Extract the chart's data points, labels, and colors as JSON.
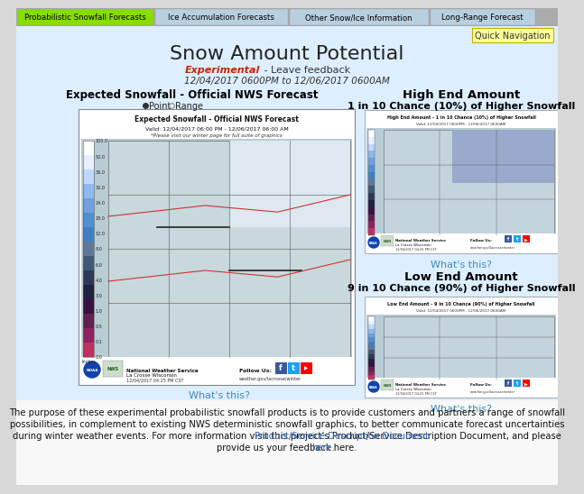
{
  "page_bg": "#d8d8d8",
  "content_bg": "#ddeeff",
  "nav_bg": "#aaaaaa",
  "nav_items": [
    "Probabilistic Snowfall Forecasts",
    "Ice Accumulation Forecasts",
    "Other Snow/Ice Information",
    "Long-Range Forecast"
  ],
  "nav_active_color": "#88dd00",
  "nav_inactive_color": "#b8cfe0",
  "nav_active_text": "#000000",
  "nav_inactive_text": "#000000",
  "nav_border_color": "#999999",
  "quick_nav_color": "#ffff99",
  "quick_nav_border": "#ccaa00",
  "quick_nav_text": "Quick Navigation",
  "title": "Snow Amount Potential",
  "title_color": "#222222",
  "title_fontsize": 16,
  "exp_text": "Experimental",
  "exp_color": "#cc2200",
  "feedback_text": " - Leave feedback",
  "feedback_color": "#333333",
  "date_text": "12/04/2017 0600PM to 12/06/2017 0600AM",
  "date_color": "#333333",
  "left_title": "Expected Snowfall - Official NWS Forecast",
  "left_title_color": "#000000",
  "radio_point": "Point",
  "radio_range": "Range",
  "map_bg": "#ccd8e4",
  "map_border": "#888888",
  "map_inner_bg": "#b8ccd8",
  "map_title": "Expected Snowfall - Official NWS Forecast",
  "map_valid": "Valid: 12/04/2017 06:00 PM - 12/06/2017 06:00 AM",
  "map_note": "*Please visit our winter page for full suite of graphics",
  "nws_line1": "National Weather Service",
  "nws_line2": "La Crosse Wisconsin",
  "follow_us": "Follow Us:",
  "date_stamp": "12/04/2017 04:25 PM CST",
  "web_url": "weather.gov/lacrosse/winter",
  "whats_this": "What's this?",
  "whats_this_color": "#4488bb",
  "high_end_title": "High End Amount",
  "high_end_sub": "1 in 10 Chance (10%) of Higher Snowfall",
  "high_end_map_title": "High End Amount - 1 in 10 Chance (10%) of Higher Snowfall",
  "high_end_valid": "Valid: 12/04/2017 0600PM - 12/06/2017 0600AM",
  "low_end_title": "Low End Amount",
  "low_end_sub": "9 in 10 Chance (90%) of Higher Snowfall",
  "low_end_map_title": "Low End Amount - 9 in 10 Chance (90%) of Higher Snowfall",
  "low_end_valid": "Valid: 12/04/2017 0600PM - 12/06/2017 0600AM",
  "bottom_bg": "#f0f4f8",
  "bottom_line1": "The purpose of these experimental probabilistic snowfall products is to provide customers and partners a range of snowfall",
  "bottom_line2": "possibilities, in complement to existing NWS deterministic snowfall graphics, to better communicate forecast uncertainties",
  "bottom_line3": "during winter weather events. For more information visit this project’s ",
  "bottom_link1": "Product/Service Description Document",
  "bottom_line4": ", and please",
  "bottom_line5": "provide us your feedback ",
  "bottom_link2": "here.",
  "bottom_text_color": "#111111",
  "bottom_link_color": "#3366bb",
  "colorbar_colors": [
    "#ffffff",
    "#e8f0ff",
    "#c0d8ff",
    "#90b8f0",
    "#70a0e0",
    "#5090d0",
    "#4080c0",
    "#607898",
    "#405878",
    "#303858",
    "#202040",
    "#3a1040",
    "#602050",
    "#902060",
    "#c03060"
  ],
  "colorbar_labels": [
    "100.0",
    "50.0",
    "36.0",
    "30.0",
    "24.0",
    "18.0",
    "12.0",
    "8.0",
    "6.0",
    "4.0",
    "3.0",
    "1.0",
    "0.5",
    "0.1",
    "0.0"
  ]
}
